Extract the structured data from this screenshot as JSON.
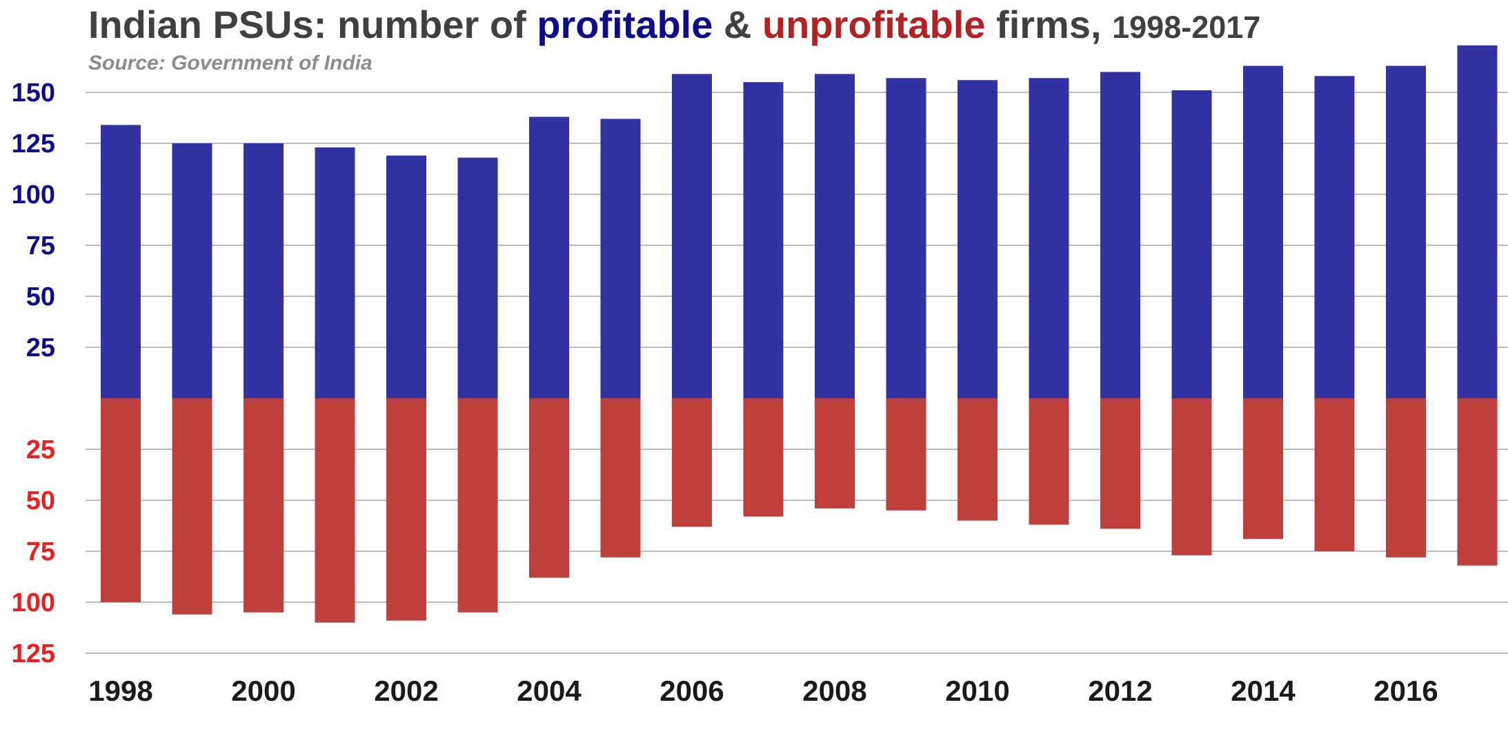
{
  "title": {
    "prefix": "Indian PSUs: number of ",
    "profitable": "profitable",
    "amp": " & ",
    "unprofitable": "unprofitable",
    "suffix": " firms, ",
    "years": "1998-2017"
  },
  "subtitle": "Source: Government of India",
  "colors": {
    "profitable": "#3232a2",
    "unprofitable": "#be403c",
    "profitable_tick": "#0d0d8c",
    "unprofitable_tick": "#e82020",
    "grid": "#bdbdbd"
  },
  "chart_data": {
    "type": "bar",
    "categories": [
      "1998",
      "1999",
      "2000",
      "2001",
      "2002",
      "2003",
      "2004",
      "2005",
      "2006",
      "2007",
      "2008",
      "2009",
      "2010",
      "2011",
      "2012",
      "2013",
      "2014",
      "2015",
      "2016",
      "2017"
    ],
    "series": [
      {
        "name": "profitable",
        "values": [
          134,
          125,
          125,
          123,
          119,
          118,
          138,
          137,
          159,
          155,
          159,
          157,
          156,
          157,
          160,
          151,
          163,
          158,
          163,
          173
        ]
      },
      {
        "name": "unprofitable",
        "values": [
          100,
          106,
          105,
          110,
          109,
          105,
          88,
          78,
          63,
          58,
          54,
          55,
          60,
          62,
          64,
          77,
          69,
          75,
          78,
          82
        ]
      }
    ],
    "x_tick_labels": [
      "1998",
      "2000",
      "2002",
      "2004",
      "2006",
      "2008",
      "2010",
      "2012",
      "2014",
      "2016"
    ],
    "y_ticks_profitable": [
      "150",
      "125",
      "100",
      "75",
      "50",
      "25"
    ],
    "y_ticks_unprofitable": [
      "25",
      "50",
      "75",
      "100",
      "125"
    ],
    "ylim": [
      -125,
      173
    ],
    "grid": true,
    "legend": "none"
  }
}
